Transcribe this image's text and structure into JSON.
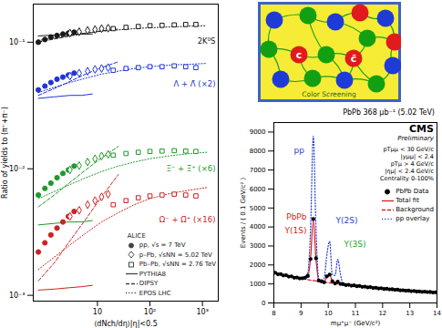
{
  "chart_data": [
    {
      "type": "scatter",
      "log": true,
      "xlabel": "⟨dNch/dη⟩|η|<0.5",
      "ylabel": "Ratio of yields to (π⁺+π⁻)",
      "xlim": [
        0.6,
        2000
      ],
      "ylim": [
        0.0009,
        0.2
      ],
      "xticks": [
        10,
        {
          "value": 100,
          "label": "10²"
        },
        {
          "value": 1000,
          "label": "10³"
        }
      ],
      "yticks": [
        {
          "value": 0.001,
          "label": "10⁻³"
        },
        {
          "value": 0.01,
          "label": "10⁻²"
        },
        {
          "value": 0.1,
          "label": "10⁻¹"
        }
      ],
      "legend": "bottom-right",
      "legend_title": "ALICE",
      "systems": [
        {
          "name": "pp, √s = 7 TeV",
          "marker": "filled circle"
        },
        {
          "name": "p–Pb, √sNN = 5.02 TeV",
          "marker": "open diamond"
        },
        {
          "name": "Pb–Pb, √sNN = 2.76 TeV",
          "marker": "open square"
        }
      ],
      "series": [
        {
          "name": "2K⁰S",
          "color": "#1a1a1a",
          "data": [
            {
              "x": [
                0.75,
                1.0,
                1.3,
                1.7,
                2.2,
                2.8,
                3.6
              ],
              "y": [
                0.1,
                0.105,
                0.11,
                0.113,
                0.116,
                0.118,
                0.12
              ]
            },
            {
              "x": [
                3,
                4.5,
                6.5,
                9,
                12,
                16
              ],
              "y": [
                0.118,
                0.121,
                0.124,
                0.126,
                0.128,
                0.129
              ]
            },
            {
              "x": [
                20,
                35,
                60,
                100,
                170,
                290,
                480,
                750
              ],
              "y": [
                0.128,
                0.131,
                0.133,
                0.135,
                0.136,
                0.137,
                0.138,
                0.138
              ]
            }
          ]
        },
        {
          "name": "Λ + Λ̄ (×2)",
          "color": "#1f35d6",
          "data": [
            {
              "x": [
                0.75,
                1.0,
                1.3,
                1.7,
                2.2,
                2.8,
                3.6
              ],
              "y": [
                0.042,
                0.045,
                0.048,
                0.051,
                0.053,
                0.055,
                0.057
              ]
            },
            {
              "x": [
                3,
                4.5,
                6.5,
                9,
                12,
                16
              ],
              "y": [
                0.054,
                0.057,
                0.059,
                0.061,
                0.062,
                0.063
              ]
            },
            {
              "x": [
                20,
                35,
                60,
                100,
                170,
                290,
                480,
                750
              ],
              "y": [
                0.06,
                0.062,
                0.063,
                0.064,
                0.064,
                0.065,
                0.064,
                0.063
              ]
            }
          ]
        },
        {
          "name": "Ξ⁻ + Ξ̄⁺ (×6)",
          "color": "#1e9a2a",
          "data": [
            {
              "x": [
                0.75,
                1.0,
                1.3,
                1.7,
                2.2,
                2.8,
                3.6
              ],
              "y": [
                0.0062,
                0.007,
                0.0077,
                0.0085,
                0.0092,
                0.0098,
                0.0105
              ]
            },
            {
              "x": [
                3,
                4.5,
                6.5,
                9,
                12,
                16
              ],
              "y": [
                0.0098,
                0.0106,
                0.0113,
                0.012,
                0.0126,
                0.013
              ]
            },
            {
              "x": [
                20,
                35,
                60,
                100,
                170,
                290,
                480,
                750
              ],
              "y": [
                0.0128,
                0.0132,
                0.0135,
                0.0137,
                0.0138,
                0.0139,
                0.0138,
                0.0137
              ]
            }
          ]
        },
        {
          "name": "Ω⁻ + Ω̄⁺ (×16)",
          "color": "#cc2222",
          "data": [
            {
              "x": [
                0.75,
                1.0,
                1.3,
                1.7,
                2.2,
                2.8,
                3.6
              ],
              "y": [
                0.0022,
                0.0026,
                0.003,
                0.0034,
                0.0038,
                0.0042,
                0.0046
              ]
            },
            {
              "x": [
                3,
                4.5,
                6.5,
                9,
                12,
                16
              ],
              "y": [
                0.0042,
                0.0047,
                0.0052,
                0.0056,
                0.006,
                0.0063
              ]
            },
            {
              "x": [
                20,
                35,
                60,
                100,
                170,
                290,
                480,
                750
              ],
              "y": [
                0.0052,
                0.0056,
                0.0059,
                0.0061,
                0.0062,
                0.0063,
                0.0062,
                0.0061
              ]
            }
          ]
        }
      ],
      "models": [
        {
          "name": "PYTHIA8",
          "line_style": "solid",
          "curves": [
            {
              "x": [
                0.75,
                1.5,
                3,
                5,
                8
              ],
              "y": [
                0.112,
                0.114,
                0.115,
                0.116,
                0.116
              ]
            },
            {
              "x": [
                0.75,
                1.5,
                3,
                5,
                8
              ],
              "y": [
                0.036,
                0.037,
                0.038,
                0.038,
                0.039
              ]
            },
            {
              "x": [
                0.75,
                1.5,
                3,
                5,
                8
              ],
              "y": [
                0.0036,
                0.0037,
                0.0038,
                0.0038,
                0.0039
              ]
            },
            {
              "x": [
                0.75,
                1.5,
                3,
                5,
                8
              ],
              "y": [
                0.0011,
                0.00112,
                0.00115,
                0.00117,
                0.0012
              ]
            }
          ]
        },
        {
          "name": "DIPSY",
          "line_style": "dashed",
          "curves": [
            {
              "x": [
                0.75,
                1.5,
                3,
                6,
                12,
                25
              ],
              "y": [
                0.1,
                0.106,
                0.112,
                0.118,
                0.123,
                0.127
              ]
            },
            {
              "x": [
                0.75,
                1.5,
                3,
                6,
                12,
                25
              ],
              "y": [
                0.038,
                0.043,
                0.049,
                0.056,
                0.063,
                0.07
              ]
            },
            {
              "x": [
                0.75,
                1.5,
                3,
                6,
                12,
                25
              ],
              "y": [
                0.005,
                0.0062,
                0.0078,
                0.0098,
                0.0122,
                0.015
              ]
            },
            {
              "x": [
                0.75,
                1.5,
                3,
                6,
                12,
                25
              ],
              "y": [
                0.0013,
                0.0018,
                0.0027,
                0.004,
                0.006,
                0.009
              ]
            }
          ]
        },
        {
          "name": "EPOS LHC",
          "line_style": "dotted",
          "curves": [
            {
              "x": [
                0.75,
                1.5,
                3,
                6,
                12,
                25,
                50,
                100,
                250,
                600,
                1200
              ],
              "y": [
                0.103,
                0.108,
                0.113,
                0.118,
                0.122,
                0.125,
                0.128,
                0.13,
                0.132,
                0.134,
                0.135
              ]
            },
            {
              "x": [
                0.75,
                1.5,
                3,
                6,
                12,
                25,
                50,
                100,
                250,
                600,
                1200
              ],
              "y": [
                0.04,
                0.044,
                0.048,
                0.052,
                0.056,
                0.059,
                0.062,
                0.064,
                0.066,
                0.067,
                0.068
              ]
            },
            {
              "x": [
                0.75,
                1.5,
                3,
                6,
                12,
                25,
                50,
                100,
                250,
                600,
                1200
              ],
              "y": [
                0.0058,
                0.0066,
                0.0075,
                0.0085,
                0.0095,
                0.0105,
                0.0113,
                0.012,
                0.0127,
                0.0132,
                0.0135
              ]
            },
            {
              "x": [
                0.75,
                1.5,
                3,
                6,
                12,
                25,
                50,
                100,
                250,
                600,
                1200
              ],
              "y": [
                0.0016,
                0.002,
                0.0025,
                0.0031,
                0.0038,
                0.0045,
                0.0052,
                0.0058,
                0.0064,
                0.0068,
                0.0071
              ]
            }
          ]
        }
      ]
    },
    {
      "type": "line",
      "title": "PbPb 368 μb⁻¹ (5.02 TeV)",
      "xlabel": "mμ⁺μ⁻ (GeV/c²)",
      "ylabel": "Events / ( 0.1 GeV/c² )",
      "xlim": [
        8,
        14
      ],
      "ylim": [
        0,
        9500
      ],
      "xticks": [
        8,
        9,
        10,
        11,
        12,
        13,
        14
      ],
      "yticks": [
        0,
        1000,
        2000,
        3000,
        4000,
        5000,
        6000,
        7000,
        8000,
        9000
      ],
      "legend": "top-right",
      "header": [
        "CMS",
        "Preliminary"
      ],
      "cuts": [
        "pTμμ < 30 GeV/c",
        "|yμμ| < 2.4",
        "pTμ > 4 GeV/c",
        "|ημ| < 2.4 GeV/c",
        "Centrality 0-100%"
      ],
      "labels": [
        {
          "text": "pp",
          "color": "#2b3fd1"
        },
        {
          "text": "PbPb",
          "color": "#d81e1e"
        },
        {
          "text": "Υ(1S)",
          "color": "#d81e1e"
        },
        {
          "text": "Υ(2S)",
          "color": "#2b3fd1"
        },
        {
          "text": "Υ(3S)",
          "color": "#22a52a"
        }
      ],
      "x": [
        8.05,
        8.15,
        8.25,
        8.35,
        8.45,
        8.55,
        8.65,
        8.75,
        8.85,
        8.95,
        9.05,
        9.15,
        9.25,
        9.35,
        9.45,
        9.55,
        9.65,
        9.75,
        9.85,
        9.95,
        10.05,
        10.15,
        10.25,
        10.35,
        10.45,
        10.55,
        10.65,
        10.75,
        10.85,
        10.95,
        11.05,
        11.15,
        11.25,
        11.35,
        11.45,
        11.55,
        11.65,
        11.75,
        11.85,
        11.95,
        12.05,
        12.15,
        12.25,
        12.35,
        12.45,
        12.55,
        12.65,
        12.75,
        12.85,
        12.95,
        13.05,
        13.15,
        13.25,
        13.35,
        13.45,
        13.55,
        13.65,
        13.75,
        13.85,
        13.95
      ],
      "series": [
        {
          "name": "PbPb Data",
          "type": "scatter",
          "marker": "circle",
          "color": "#000000",
          "values": [
            1590,
            1510,
            1520,
            1450,
            1460,
            1390,
            1400,
            1330,
            1340,
            1290,
            1300,
            1330,
            1420,
            2310,
            4420,
            2350,
            1180,
            1140,
            1090,
            1400,
            1490,
            1150,
            1030,
            1120,
            1000,
            985,
            940,
            955,
            910,
            925,
            880,
            895,
            850,
            860,
            820,
            835,
            790,
            800,
            760,
            775,
            735,
            745,
            715,
            720,
            690,
            700,
            665,
            670,
            645,
            650,
            620,
            630,
            600,
            610,
            585,
            590,
            570,
            575,
            550,
            560
          ]
        },
        {
          "name": "Total fit",
          "type": "line",
          "line_style": "solid",
          "color": "#e31a1c",
          "values": [
            1560,
            1530,
            1500,
            1470,
            1440,
            1410,
            1380,
            1350,
            1325,
            1300,
            1275,
            1350,
            1395,
            2350,
            4380,
            2310,
            1200,
            1120,
            1120,
            1380,
            1515,
            1130,
            1050,
            1100,
            1025,
            970,
            955,
            940,
            925,
            910,
            895,
            880,
            865,
            850,
            835,
            820,
            805,
            790,
            775,
            760,
            748,
            736,
            724,
            712,
            700,
            688,
            676,
            664,
            652,
            640,
            630,
            620,
            610,
            600,
            592,
            584,
            576,
            568,
            560,
            552
          ]
        },
        {
          "name": "Background",
          "type": "line",
          "line_style": "dashed",
          "color": "#e31a1c",
          "values": [
            1560,
            1530,
            1500,
            1470,
            1440,
            1410,
            1380,
            1350,
            1325,
            1300,
            1275,
            1250,
            1225,
            1200,
            1180,
            1160,
            1140,
            1120,
            1100,
            1080,
            1060,
            1040,
            1020,
            1000,
            985,
            970,
            955,
            940,
            925,
            910,
            895,
            880,
            865,
            850,
            835,
            820,
            805,
            790,
            775,
            760,
            748,
            736,
            724,
            712,
            700,
            688,
            676,
            664,
            652,
            640,
            630,
            620,
            610,
            600,
            592,
            584,
            576,
            568,
            560,
            552
          ]
        },
        {
          "name": "pp overlay",
          "type": "line",
          "line_style": "dotted",
          "color": "#2b3fd1",
          "values": [
            1560,
            1530,
            1500,
            1470,
            1440,
            1410,
            1380,
            1350,
            1325,
            1300,
            1275,
            1400,
            1605,
            3940,
            8780,
            3900,
            1270,
            1120,
            1290,
            2540,
            3240,
            1490,
            1450,
            2300,
            1505,
            995,
            955,
            940,
            925,
            910,
            895,
            880,
            865,
            850,
            835,
            820,
            805,
            790,
            775,
            760,
            748,
            736,
            724,
            712,
            700,
            688,
            676,
            664,
            652,
            640,
            630,
            620,
            610,
            600,
            592,
            584,
            576,
            568,
            560,
            552
          ]
        }
      ]
    }
  ],
  "diagram": {
    "labels": [
      "c",
      "c̄"
    ],
    "caption": "Color Screening"
  }
}
